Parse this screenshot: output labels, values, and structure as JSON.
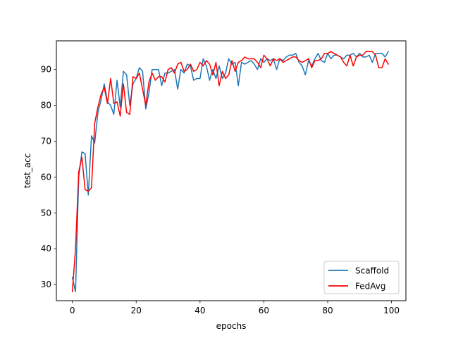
{
  "chart_data": {
    "type": "line",
    "title": "",
    "xlabel": "epochs",
    "ylabel": "test_acc",
    "xlim": [
      -5,
      104.5
    ],
    "ylim": [
      25.5,
      98
    ],
    "xticks": [
      0,
      20,
      40,
      60,
      80,
      100
    ],
    "yticks": [
      30,
      40,
      50,
      60,
      70,
      80,
      90
    ],
    "grid": false,
    "legend": "lower-right",
    "series": [
      {
        "name": "Scaffold",
        "color": "#1f77b4",
        "x": [
          0,
          1,
          2,
          3,
          4,
          5,
          6,
          7,
          8,
          9,
          10,
          11,
          12,
          13,
          14,
          15,
          16,
          17,
          18,
          19,
          20,
          21,
          22,
          23,
          24,
          25,
          26,
          27,
          28,
          29,
          30,
          31,
          32,
          33,
          34,
          35,
          36,
          37,
          38,
          39,
          40,
          41,
          42,
          43,
          44,
          45,
          46,
          47,
          48,
          49,
          50,
          51,
          52,
          53,
          54,
          55,
          56,
          57,
          58,
          59,
          60,
          61,
          62,
          63,
          64,
          65,
          66,
          67,
          68,
          69,
          70,
          71,
          72,
          73,
          74,
          75,
          76,
          77,
          78,
          79,
          80,
          81,
          82,
          83,
          84,
          85,
          86,
          87,
          88,
          89,
          90,
          91,
          92,
          93,
          94,
          95,
          96,
          97,
          98,
          99
        ],
        "values": [
          32,
          28,
          60,
          67,
          66.5,
          55,
          71.5,
          69.5,
          78,
          81.5,
          86,
          81,
          80,
          77.5,
          87,
          79.5,
          89.5,
          88.5,
          80,
          86,
          87.5,
          90.5,
          89.5,
          79,
          83.5,
          90,
          90,
          90,
          85.5,
          89,
          89,
          89.5,
          90,
          84.5,
          90,
          89,
          91.5,
          91,
          87,
          87.5,
          87.5,
          93,
          91,
          87,
          90,
          87.5,
          91,
          87.5,
          89,
          93,
          91.5,
          92,
          85.5,
          92,
          91.5,
          92,
          92.5,
          91.5,
          90,
          93,
          92,
          93,
          92.5,
          93,
          90,
          93,
          92.5,
          93.5,
          94,
          94,
          94.5,
          92,
          91,
          88.5,
          92.5,
          91,
          93,
          94.5,
          92.5,
          92,
          94.5,
          93,
          94,
          94,
          93.5,
          93,
          94,
          94,
          94.5,
          93.5,
          94.5,
          93.5,
          93.5,
          94,
          92,
          94.5,
          94.5,
          94.5,
          93.5,
          95
        ]
      },
      {
        "name": "FedAvg",
        "color": "#ff0000",
        "x": [
          0,
          1,
          2,
          3,
          4,
          5,
          6,
          7,
          8,
          9,
          10,
          11,
          12,
          13,
          14,
          15,
          16,
          17,
          18,
          19,
          20,
          21,
          22,
          23,
          24,
          25,
          26,
          27,
          28,
          29,
          30,
          31,
          32,
          33,
          34,
          35,
          36,
          37,
          38,
          39,
          40,
          41,
          42,
          43,
          44,
          45,
          46,
          47,
          48,
          49,
          50,
          51,
          52,
          53,
          54,
          55,
          56,
          57,
          58,
          59,
          60,
          61,
          62,
          63,
          64,
          65,
          66,
          67,
          68,
          69,
          70,
          71,
          72,
          73,
          74,
          75,
          76,
          77,
          78,
          79,
          80,
          81,
          82,
          83,
          84,
          85,
          86,
          87,
          88,
          89,
          90,
          91,
          92,
          93,
          94,
          95,
          96,
          97,
          98,
          99
        ],
        "values": [
          28,
          40,
          61.5,
          65.5,
          56.5,
          56,
          57,
          75,
          79.5,
          83,
          85,
          80.5,
          87.5,
          80.5,
          81,
          77,
          86,
          78,
          77.5,
          88,
          87.5,
          89,
          84.5,
          80,
          86.5,
          89,
          87,
          88,
          88,
          86.5,
          90,
          90.5,
          89,
          91.5,
          92,
          89.5,
          90,
          91.5,
          89.5,
          90,
          92,
          91,
          92.5,
          91.5,
          88.5,
          92,
          85.5,
          89.5,
          87.5,
          88.5,
          92.5,
          89.5,
          92,
          92.5,
          93.5,
          93,
          93,
          93,
          92,
          90.5,
          94,
          93,
          91,
          93,
          92.5,
          93,
          92,
          92.5,
          93,
          93.5,
          93.5,
          92.5,
          92,
          92.5,
          93,
          90.5,
          92.5,
          92.5,
          93,
          94.5,
          94.5,
          95,
          94.5,
          94,
          93.5,
          92,
          91,
          94,
          91,
          93.5,
          94,
          94,
          95,
          95,
          95,
          94,
          90.5,
          90.5,
          93,
          91.5
        ]
      }
    ]
  }
}
